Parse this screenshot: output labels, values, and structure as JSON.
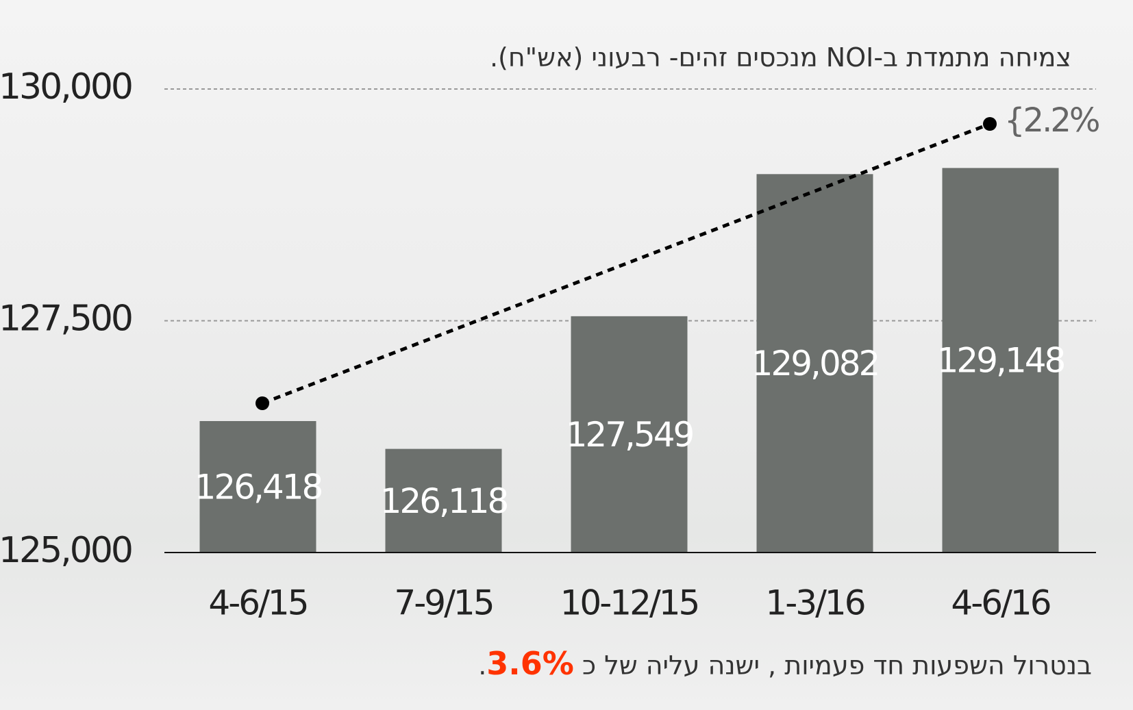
{
  "chart_data": {
    "type": "bar",
    "title": "צמיחה מתמדת ב-NOI מנכסים זהים- רבעוני (אש\"ח).",
    "categories": [
      "4-6/15",
      "7-9/15",
      "10-12/15",
      "1-3/16",
      "4-6/16"
    ],
    "values": [
      126418,
      126118,
      127549,
      129082,
      129148
    ],
    "value_labels": [
      "126,418",
      "126,118",
      "127,549",
      "129,082",
      "129,148"
    ],
    "color": "#6c706d",
    "ylim": [
      125000,
      130000
    ],
    "yticks": [
      {
        "value": 125000,
        "label": "125,000"
      },
      {
        "value": 127500,
        "label": "127,500"
      },
      {
        "value": 130000,
        "label": "130,000"
      }
    ],
    "grid": true,
    "annotation": "{2.2%",
    "footer": {
      "text": "בנטרול השפעות חד פעמיות , ישנה עליה של כ",
      "highlight": "3.6%",
      "end": "."
    }
  }
}
